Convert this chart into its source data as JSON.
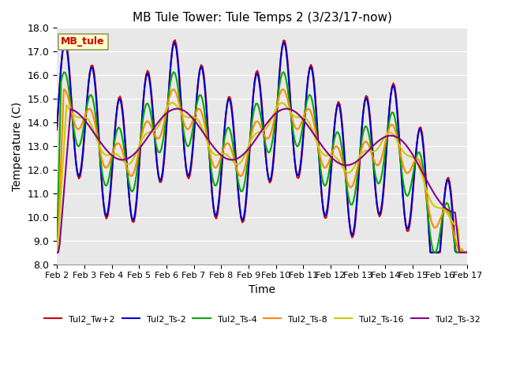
{
  "title": "MB Tule Tower: Tule Temps 2 (3/23/17-now)",
  "xlabel": "Time",
  "ylabel": "Temperature (C)",
  "ylim": [
    8.0,
    18.0
  ],
  "xlim": [
    0,
    15
  ],
  "yticks": [
    8.0,
    9.0,
    10.0,
    11.0,
    12.0,
    13.0,
    14.0,
    15.0,
    16.0,
    17.0,
    18.0
  ],
  "xtick_labels": [
    "Feb 2",
    "Feb 3",
    "Feb 4",
    "Feb 5",
    "Feb 6",
    "Feb 7",
    "Feb 8",
    "Feb 9",
    "Feb 10",
    "Feb 11",
    "Feb 12",
    "Feb 13",
    "Feb 14",
    "Feb 15",
    "Feb 16",
    "Feb 17"
  ],
  "bg_color": "#e8e8e8",
  "series": {
    "Tul2_Tw+2": {
      "color": "#cc0000",
      "lw": 1.5
    },
    "Tul2_Ts-2": {
      "color": "#0000cc",
      "lw": 1.5
    },
    "Tul2_Ts-4": {
      "color": "#00aa00",
      "lw": 1.5
    },
    "Tul2_Ts-8": {
      "color": "#ff8800",
      "lw": 1.5
    },
    "Tul2_Ts-16": {
      "color": "#cccc00",
      "lw": 1.5
    },
    "Tul2_Ts-32": {
      "color": "#880088",
      "lw": 1.5
    }
  },
  "annotation_box": "MB_tule",
  "annotation_color": "#cc0000",
  "annotation_bg": "#ffffcc",
  "annotation_border": "#999966"
}
